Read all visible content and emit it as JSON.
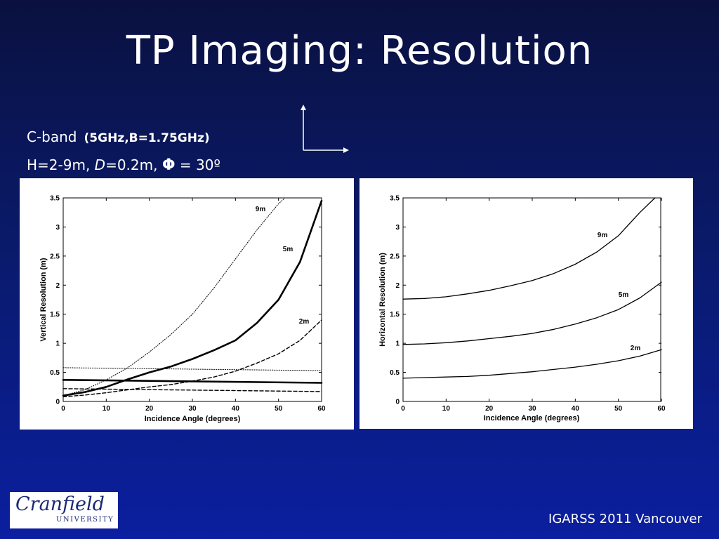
{
  "slide": {
    "title": "TP Imaging: Resolution",
    "band_name": "C-band",
    "band_params": "(5GHz,B=1.75GHz)",
    "geometry_h": "H=2-9m, ",
    "geometry_d_var": "D",
    "geometry_d_val": "=0.2m, ",
    "geometry_phi": "Φ",
    "geometry_angle": " = 30º",
    "footer": "IGARSS 2011 Vancouver"
  },
  "logo": {
    "line1": "Cranfield",
    "line2": "UNIVERSITY"
  },
  "colors": {
    "background_top": "#0a1140",
    "background_bottom": "#0b1fa0",
    "text": "#ffffff",
    "logo_blue": "#1a2a78"
  },
  "chart_data": [
    {
      "type": "line",
      "xlabel": "Incidence Angle (degrees)",
      "ylabel": "Vertical Resolution (m)",
      "xlim": [
        0,
        60
      ],
      "ylim": [
        0,
        3.5
      ],
      "xticks": [
        0,
        10,
        20,
        30,
        40,
        50,
        60
      ],
      "yticks": [
        0,
        0.5,
        1,
        1.5,
        2,
        2.5,
        3,
        3.5
      ],
      "grid": false,
      "series": [
        {
          "name": "9m",
          "style": "dotted",
          "x": [
            0,
            5,
            10,
            15,
            20,
            25,
            30,
            35,
            40,
            45,
            50,
            51.5
          ],
          "y": [
            0.1,
            0.2,
            0.37,
            0.58,
            0.85,
            1.15,
            1.5,
            1.95,
            2.45,
            2.95,
            3.4,
            3.5
          ]
        },
        {
          "name": "5m",
          "style": "solid-thick",
          "x": [
            0,
            5,
            10,
            15,
            20,
            25,
            30,
            35,
            40,
            45,
            50,
            55,
            60
          ],
          "y": [
            0.1,
            0.16,
            0.25,
            0.38,
            0.5,
            0.6,
            0.73,
            0.88,
            1.05,
            1.35,
            1.75,
            2.4,
            3.45
          ]
        },
        {
          "name": "2m",
          "style": "dashed",
          "x": [
            0,
            5,
            10,
            15,
            20,
            25,
            30,
            35,
            40,
            45,
            50,
            55,
            60
          ],
          "y": [
            0.08,
            0.11,
            0.15,
            0.2,
            0.25,
            0.29,
            0.35,
            0.42,
            0.52,
            0.66,
            0.82,
            1.05,
            1.4
          ]
        },
        {
          "style": "dotted",
          "x": [
            0,
            60
          ],
          "y": [
            0.58,
            0.53
          ]
        },
        {
          "style": "solid-thick",
          "x": [
            0,
            60
          ],
          "y": [
            0.37,
            0.32
          ]
        },
        {
          "style": "dashed",
          "x": [
            0,
            60
          ],
          "y": [
            0.22,
            0.17
          ]
        }
      ]
    },
    {
      "type": "line",
      "xlabel": "Incidence Angle (degrees)",
      "ylabel": "Horizontal Resolution (m)",
      "xlim": [
        0,
        60
      ],
      "ylim": [
        0,
        3.5
      ],
      "xticks": [
        0,
        10,
        20,
        30,
        40,
        50,
        60
      ],
      "yticks": [
        0,
        0.5,
        1,
        1.5,
        2,
        2.5,
        3,
        3.5
      ],
      "grid": false,
      "series": [
        {
          "name": "9m",
          "style": "solid",
          "x": [
            0,
            5,
            10,
            15,
            20,
            25,
            30,
            35,
            40,
            45,
            50,
            55,
            58.5
          ],
          "y": [
            1.76,
            1.77,
            1.8,
            1.85,
            1.91,
            1.99,
            2.08,
            2.2,
            2.36,
            2.57,
            2.85,
            3.25,
            3.5
          ]
        },
        {
          "name": "5m",
          "style": "solid",
          "x": [
            0,
            5,
            10,
            15,
            20,
            25,
            30,
            35,
            40,
            45,
            50,
            55,
            60
          ],
          "y": [
            0.98,
            0.99,
            1.01,
            1.04,
            1.08,
            1.12,
            1.17,
            1.24,
            1.33,
            1.44,
            1.58,
            1.78,
            2.05
          ]
        },
        {
          "name": "2m",
          "style": "solid",
          "x": [
            0,
            5,
            10,
            15,
            20,
            25,
            30,
            35,
            40,
            45,
            50,
            55,
            60
          ],
          "y": [
            0.4,
            0.41,
            0.42,
            0.43,
            0.45,
            0.48,
            0.51,
            0.55,
            0.59,
            0.64,
            0.7,
            0.78,
            0.89
          ]
        }
      ]
    }
  ]
}
